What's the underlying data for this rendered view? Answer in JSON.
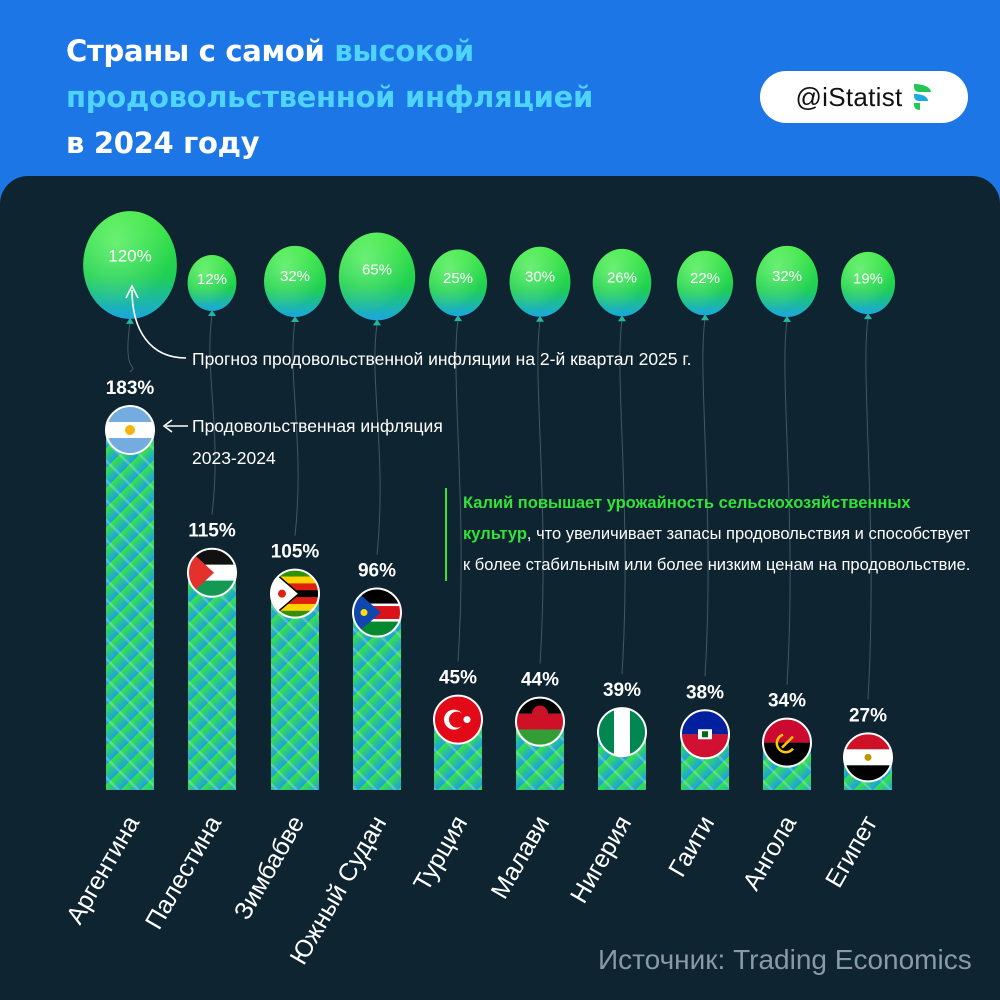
{
  "header": {
    "title_part1": "Страны с самой ",
    "title_highlight": "высокой продовольственной инфляцией",
    "title_part2": "в 2024 году",
    "brand": "@iStatist"
  },
  "annotations": {
    "forecast": "Прогноз продовольственной инфляции на 2-й квартал 2025 г.",
    "actual_line1": "Продовольственная инфляция",
    "actual_line2": "2023-2024"
  },
  "note": {
    "highlight": "Калий повышает урожайность сельскохозяйственных культур",
    "rest": ", что увеличивает запасы продовольствия и способствует к более стабильным или более низким ценам на продовольствие."
  },
  "source": "Источник: Trading Economics",
  "colors": {
    "accent_green": "#33e23a",
    "accent_blue": "#4fd3ff",
    "background_top": "#1d76e6",
    "panel": "#0e2430"
  },
  "chart_data": {
    "type": "bar",
    "categories": [
      "Аргентина",
      "Палестина",
      "Зимбабве",
      "Южный Судан",
      "Турция",
      "Малави",
      "Нигерия",
      "Гаити",
      "Ангола",
      "Египет"
    ],
    "series": [
      {
        "name": "Продовольственная инфляция 2023-2024",
        "values": [
          183,
          115,
          105,
          96,
          45,
          44,
          39,
          38,
          34,
          27
        ],
        "labels": [
          "183%",
          "115%",
          "105%",
          "96%",
          "45%",
          "44%",
          "39%",
          "38%",
          "34%",
          "27%"
        ]
      },
      {
        "name": "Прогноз продовольственной инфляции на 2-й квартал 2025 г.",
        "values": [
          120,
          12,
          32,
          65,
          25,
          30,
          26,
          22,
          32,
          19
        ],
        "labels": [
          "120%",
          "12%",
          "32%",
          "65%",
          "25%",
          "30%",
          "26%",
          "22%",
          "32%",
          "19%"
        ]
      }
    ],
    "flags": [
      "argentina-flag-icon",
      "palestine-flag-icon",
      "zimbabwe-flag-icon",
      "south-sudan-flag-icon",
      "turkey-flag-icon",
      "malawi-flag-icon",
      "nigeria-flag-icon",
      "haiti-flag-icon",
      "angola-flag-icon",
      "egypt-flag-icon"
    ]
  }
}
